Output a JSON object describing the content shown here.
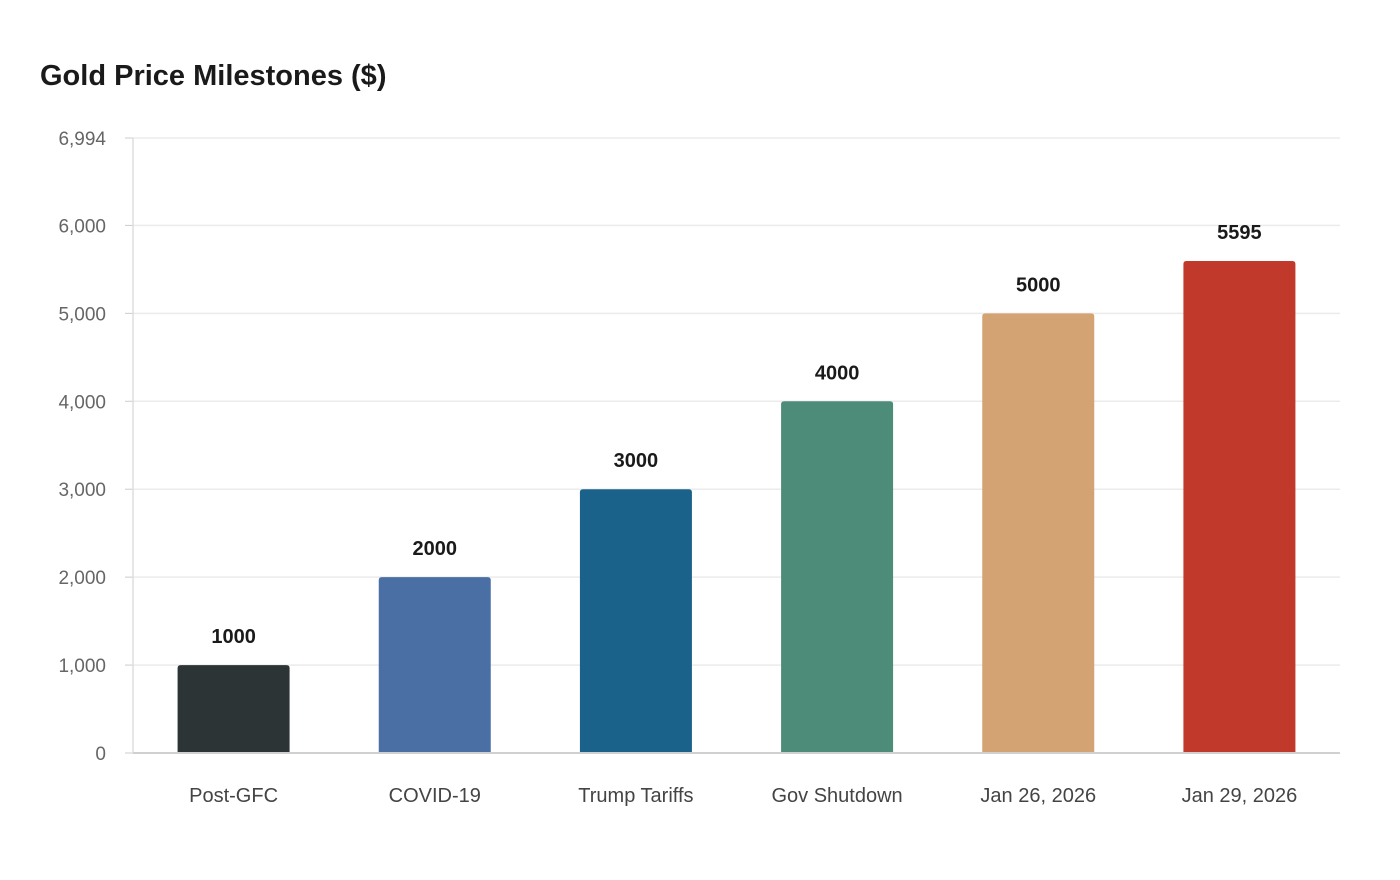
{
  "chart_data": {
    "type": "bar",
    "title": "Gold Price Milestones ($)",
    "xlabel": "",
    "ylabel": "",
    "categories": [
      "Post-GFC",
      "COVID-19",
      "Trump Tariffs",
      "Gov Shutdown",
      "Jan 26, 2026",
      "Jan 29, 2026"
    ],
    "values": [
      1000,
      2000,
      3000,
      4000,
      5000,
      5595
    ],
    "data_labels": [
      "1000",
      "2000",
      "3000",
      "4000",
      "5000",
      "5595"
    ],
    "colors": [
      "#2d3436",
      "#4a6fa5",
      "#1a6289",
      "#4e8c7a",
      "#d4a373",
      "#c0392b"
    ],
    "ylim": [
      0,
      6994
    ],
    "yticks": [
      0,
      1000,
      2000,
      3000,
      4000,
      5000,
      6000,
      6994
    ],
    "ytick_labels": [
      "0",
      "1,000",
      "2,000",
      "3,000",
      "4,000",
      "5,000",
      "6,000",
      "6,994"
    ],
    "grid": true,
    "legend": "none"
  }
}
